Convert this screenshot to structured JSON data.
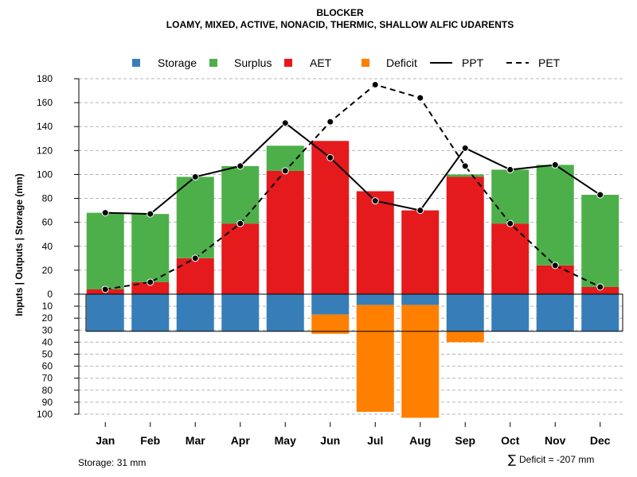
{
  "chart_data": {
    "type": "bar",
    "title": "BLOCKER",
    "subtitle": "LOAMY, MIXED, ACTIVE, NONACID, THERMIC, SHALLOW ALFIC UDARENTS",
    "ylabel": "Inputs | Outputs | Storage    (mm)",
    "categories": [
      "Jan",
      "Feb",
      "Mar",
      "Apr",
      "May",
      "Jun",
      "Jul",
      "Aug",
      "Sep",
      "Oct",
      "Nov",
      "Dec"
    ],
    "ylim_upper": [
      0,
      180
    ],
    "ylim_lower": [
      0,
      100
    ],
    "upper_ticks": [
      "180",
      "160",
      "140",
      "120",
      "100",
      "80",
      "60",
      "40",
      "20",
      "0"
    ],
    "lower_ticks": [
      "10",
      "20",
      "30",
      "40",
      "50",
      "60",
      "70",
      "80",
      "90",
      "100"
    ],
    "series": [
      {
        "name": "Storage",
        "color": "#377EB8",
        "values": [
          31,
          31,
          31,
          31,
          31,
          17,
          9,
          9,
          31,
          31,
          31,
          31
        ]
      },
      {
        "name": "Surplus",
        "color": "#4DAF4A",
        "values": [
          64,
          57,
          68,
          48,
          21,
          0,
          0,
          0,
          2,
          45,
          84,
          77
        ]
      },
      {
        "name": "AET",
        "color": "#E41A1C",
        "values": [
          4,
          10,
          30,
          59,
          103,
          128,
          86,
          70,
          98,
          59,
          24,
          6
        ]
      },
      {
        "name": "Deficit",
        "color": "#FF7F00",
        "values": [
          0,
          0,
          0,
          0,
          0,
          16,
          89,
          94,
          9,
          0,
          0,
          0
        ]
      },
      {
        "name": "PPT",
        "color": "#000000",
        "style": "solid",
        "values": [
          68,
          67,
          98,
          107,
          143,
          114,
          78,
          70,
          122,
          104,
          108,
          83
        ]
      },
      {
        "name": "PET",
        "color": "#000000",
        "style": "dashed",
        "values": [
          4,
          10,
          30,
          59,
          103,
          144,
          175,
          164,
          107,
          59,
          24,
          6
        ]
      }
    ],
    "legend": [
      "Storage",
      "Surplus",
      "AET",
      "Deficit",
      "PPT",
      "PET"
    ],
    "legend_position": "top",
    "storage_capacity": 31,
    "grid": true,
    "annotations": {
      "storage_note": "Storage: 31 mm",
      "deficit_symbol": "∑",
      "deficit_note": "Deficit = -207 mm"
    }
  }
}
